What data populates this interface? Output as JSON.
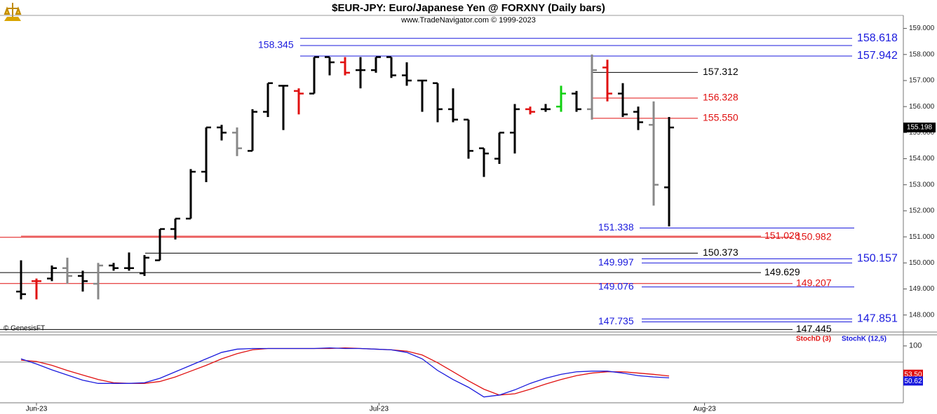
{
  "title": "$EUR-JPY:  Euro/Japanese Yen @ FORXNY  (Daily bars)",
  "subtitle": "www.TradeNavigator.com © 1999-2023",
  "watermark": "© GenesisFT",
  "chart_data": [
    {
      "type": "ohlc",
      "open": [
        148.9,
        149.3,
        149.4,
        149.8,
        149.5,
        149.2,
        149.9,
        149.8,
        149.6,
        150.1,
        151.3,
        151.7,
        153.5,
        155.2,
        155.0,
        154.3,
        155.8,
        156.8,
        156.6,
        156.5,
        157.9,
        157.7,
        157.4,
        157.4,
        157.9,
        157.2,
        157.0,
        156.9,
        155.9,
        155.5,
        154.4,
        154.0,
        155.0,
        155.9,
        155.9,
        156.0,
        156.5,
        155.9,
        157.5,
        156.5,
        155.8,
        155.3,
        152.9
      ],
      "high": [
        150.1,
        149.4,
        149.9,
        150.2,
        149.7,
        150.0,
        150.0,
        150.4,
        150.3,
        151.3,
        151.7,
        153.6,
        155.2,
        155.3,
        155.2,
        155.9,
        156.9,
        156.8,
        156.7,
        157.9,
        157.9,
        157.9,
        157.9,
        157.9,
        157.9,
        157.7,
        157.0,
        156.9,
        156.7,
        155.5,
        154.4,
        155.0,
        156.1,
        156.0,
        156.1,
        156.8,
        156.6,
        158.0,
        157.8,
        156.9,
        156.0,
        156.2,
        155.6
      ],
      "low": [
        148.6,
        148.6,
        149.3,
        149.2,
        148.9,
        148.6,
        149.7,
        149.7,
        149.5,
        150.1,
        150.9,
        151.7,
        153.1,
        154.7,
        154.1,
        154.3,
        155.6,
        155.1,
        155.7,
        156.5,
        157.2,
        157.2,
        156.7,
        157.3,
        157.1,
        156.8,
        155.8,
        155.4,
        155.4,
        154.0,
        153.3,
        153.8,
        154.2,
        155.7,
        155.8,
        155.8,
        155.8,
        155.5,
        156.2,
        155.6,
        155.1,
        152.2,
        151.4
      ],
      "close": [
        148.8,
        149.3,
        149.8,
        149.5,
        149.3,
        149.9,
        149.8,
        149.8,
        150.2,
        151.3,
        151.7,
        153.5,
        155.2,
        155.0,
        154.4,
        155.8,
        156.9,
        156.8,
        156.5,
        157.9,
        157.7,
        157.3,
        157.4,
        157.9,
        157.2,
        157.0,
        157.0,
        155.9,
        155.5,
        154.3,
        154.2,
        155.0,
        155.9,
        155.8,
        155.9,
        156.5,
        155.9,
        157.4,
        156.5,
        155.7,
        155.4,
        153.0,
        155.198
      ],
      "colors": [
        "black",
        "red",
        "black",
        "gray",
        "black",
        "gray",
        "black",
        "black",
        "black",
        "black",
        "black",
        "black",
        "black",
        "black",
        "gray",
        "black",
        "black",
        "black",
        "red",
        "black",
        "black",
        "red",
        "black",
        "black",
        "black",
        "black",
        "black",
        "black",
        "black",
        "black",
        "black",
        "black",
        "black",
        "red",
        "black",
        "green",
        "black",
        "gray",
        "red",
        "black",
        "black",
        "gray",
        "black"
      ],
      "ylim": [
        147.4,
        159.5
      ],
      "yticks": [
        {
          "value": 148,
          "label": "148.000"
        },
        {
          "value": 149,
          "label": "149.000"
        },
        {
          "value": 150,
          "label": "150.000"
        },
        {
          "value": 151,
          "label": "151.000"
        },
        {
          "value": 152,
          "label": "152.000"
        },
        {
          "value": 153,
          "label": "153.000"
        },
        {
          "value": 154,
          "label": "154.000"
        },
        {
          "value": 155,
          "label": "155.000"
        },
        {
          "value": 156,
          "label": "156.000"
        },
        {
          "value": 157,
          "label": "157.000"
        },
        {
          "value": 158,
          "label": "158.000"
        },
        {
          "value": 159,
          "label": "159.000"
        }
      ],
      "levels": [
        {
          "value": 158.618,
          "color": "#1a1add"
        },
        {
          "value": 158.345,
          "color": "#1a1add"
        },
        {
          "value": 157.942,
          "color": "#1a1add"
        },
        {
          "value": 157.312,
          "color": "#000000"
        },
        {
          "value": 156.328,
          "color": "#e01010"
        },
        {
          "value": {
            "value": 155.55,
            "label": "155.550"
          },
          "color": "#e01010"
        },
        {
          "value": 151.338,
          "color": "#1a1add"
        },
        {
          "value": 151.028,
          "color": "#e01010"
        },
        {
          "value": 150.982,
          "color": "#e01010"
        },
        {
          "value": 150.373,
          "color": "#000000"
        },
        {
          "value": 150.157,
          "color": "#1a1add"
        },
        {
          "value": 149.997,
          "color": "#1a1add"
        },
        {
          "value": 149.629,
          "color": "#000000"
        },
        {
          "value": 149.207,
          "color": "#e01010"
        },
        {
          "value": 149.076,
          "color": "#1a1add"
        },
        {
          "value": 147.851,
          "color": "#1a1add"
        },
        {
          "value": 147.735,
          "color": "#1a1add"
        },
        {
          "value": 147.445,
          "color": "#000000"
        }
      ]
    },
    {
      "type": "line",
      "series": [
        {
          "name": "StochD (3)",
          "color": "#e01010",
          "values": [
            78,
            76,
            70,
            62,
            55,
            48,
            43,
            42,
            42,
            45,
            52,
            61,
            70,
            80,
            88,
            94,
            96,
            96,
            96,
            96,
            96,
            97,
            96,
            95,
            94,
            92,
            86,
            74,
            60,
            46,
            33,
            24,
            26,
            33,
            41,
            48,
            54,
            58,
            60,
            60,
            58,
            56,
            53.5
          ],
          "value_labels": [
            null,
            null,
            null,
            null,
            null,
            null,
            null,
            null,
            null,
            null,
            null,
            null,
            null,
            null,
            null,
            null,
            null,
            null,
            null,
            null,
            null,
            null,
            null,
            null,
            null,
            null,
            null,
            null,
            null,
            null,
            null,
            null,
            null,
            null,
            null,
            null,
            null,
            null,
            null,
            null,
            null,
            null,
            "53.50"
          ]
        },
        {
          "name": "StochK (12,5)",
          "color": "#1a1add",
          "values": [
            80,
            72,
            63,
            55,
            47,
            42,
            42,
            42,
            43,
            50,
            60,
            70,
            80,
            90,
            95,
            96,
            96,
            96,
            96,
            96,
            97,
            96,
            96,
            95,
            94,
            90,
            80,
            62,
            48,
            36,
            21,
            24,
            32,
            42,
            50,
            56,
            60,
            61,
            61,
            58,
            54,
            52,
            50.62
          ],
          "value_labels": [
            null,
            null,
            null,
            null,
            null,
            null,
            null,
            null,
            null,
            null,
            null,
            null,
            null,
            null,
            null,
            null,
            null,
            null,
            null,
            null,
            null,
            null,
            null,
            null,
            null,
            null,
            null,
            null,
            null,
            null,
            null,
            null,
            null,
            null,
            null,
            null,
            null,
            null,
            null,
            null,
            null,
            null,
            "50.62"
          ]
        }
      ],
      "ylim": [
        12,
        115
      ],
      "yticks": [
        100
      ],
      "hline": 75,
      "xticks": [
        {
          "value": 1,
          "label": "Jun-23"
        },
        {
          "value": 23.2,
          "label": "Jul-23"
        },
        {
          "value": 44.3,
          "label": "Aug-23"
        }
      ]
    }
  ]
}
